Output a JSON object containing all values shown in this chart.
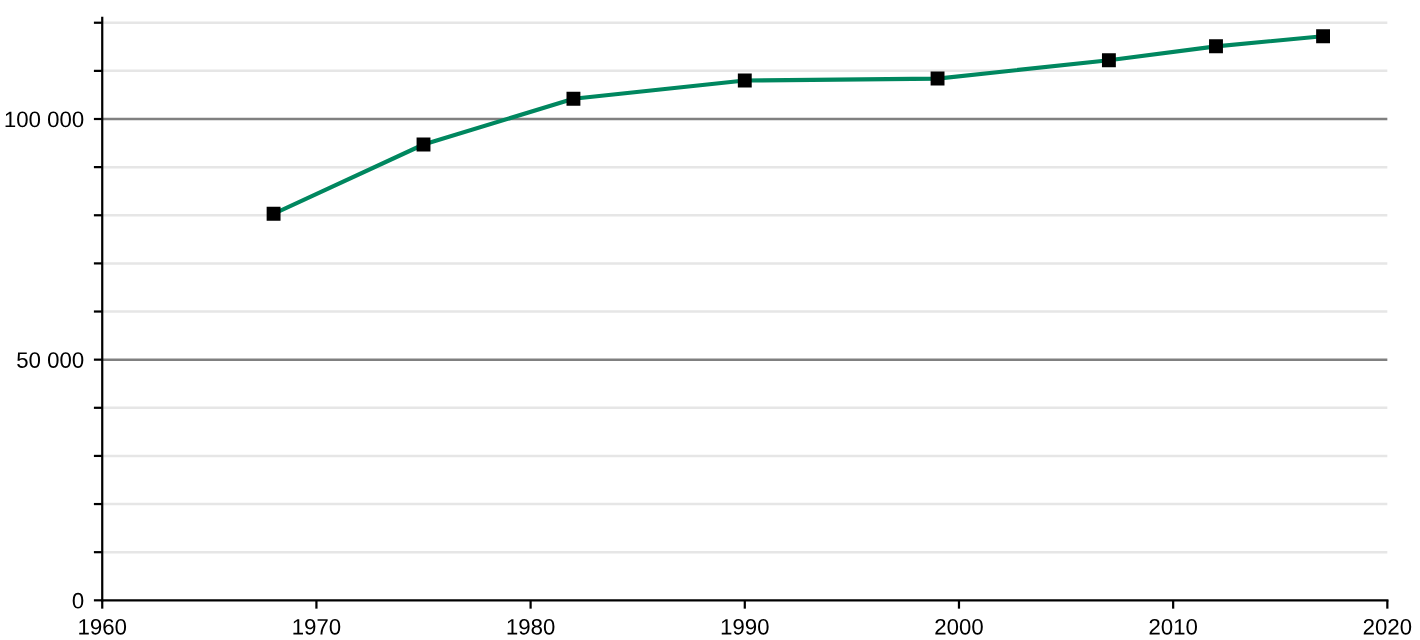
{
  "chart_data": {
    "type": "line",
    "x": [
      1968,
      1975,
      1982,
      1990,
      1999,
      2007,
      2012,
      2017
    ],
    "series": [
      {
        "color": "#00875f",
        "values": [
          80300,
          94700,
          104200,
          108000,
          108400,
          112200,
          115100,
          117200
        ]
      }
    ],
    "marker": "square",
    "line_style": "solid",
    "grid": "y",
    "xlim": [
      1960,
      2020
    ],
    "xticks": [
      1960,
      1970,
      1980,
      1990,
      2000,
      2010,
      2020
    ],
    "ylim": [
      0,
      121000
    ],
    "yticks": [
      {
        "value": 0,
        "label": "0"
      },
      {
        "value": 10000,
        "label": null
      },
      {
        "value": 20000,
        "label": null
      },
      {
        "value": 30000,
        "label": null
      },
      {
        "value": 40000,
        "label": null
      },
      {
        "value": 50000,
        "label": "50 000"
      },
      {
        "value": 60000,
        "label": null
      },
      {
        "value": 70000,
        "label": null
      },
      {
        "value": 80000,
        "label": null
      },
      {
        "value": 90000,
        "label": null
      },
      {
        "value": 100000,
        "label": "100 000"
      },
      {
        "value": 110000,
        "label": null
      },
      {
        "value": 120000,
        "label": null
      }
    ]
  }
}
